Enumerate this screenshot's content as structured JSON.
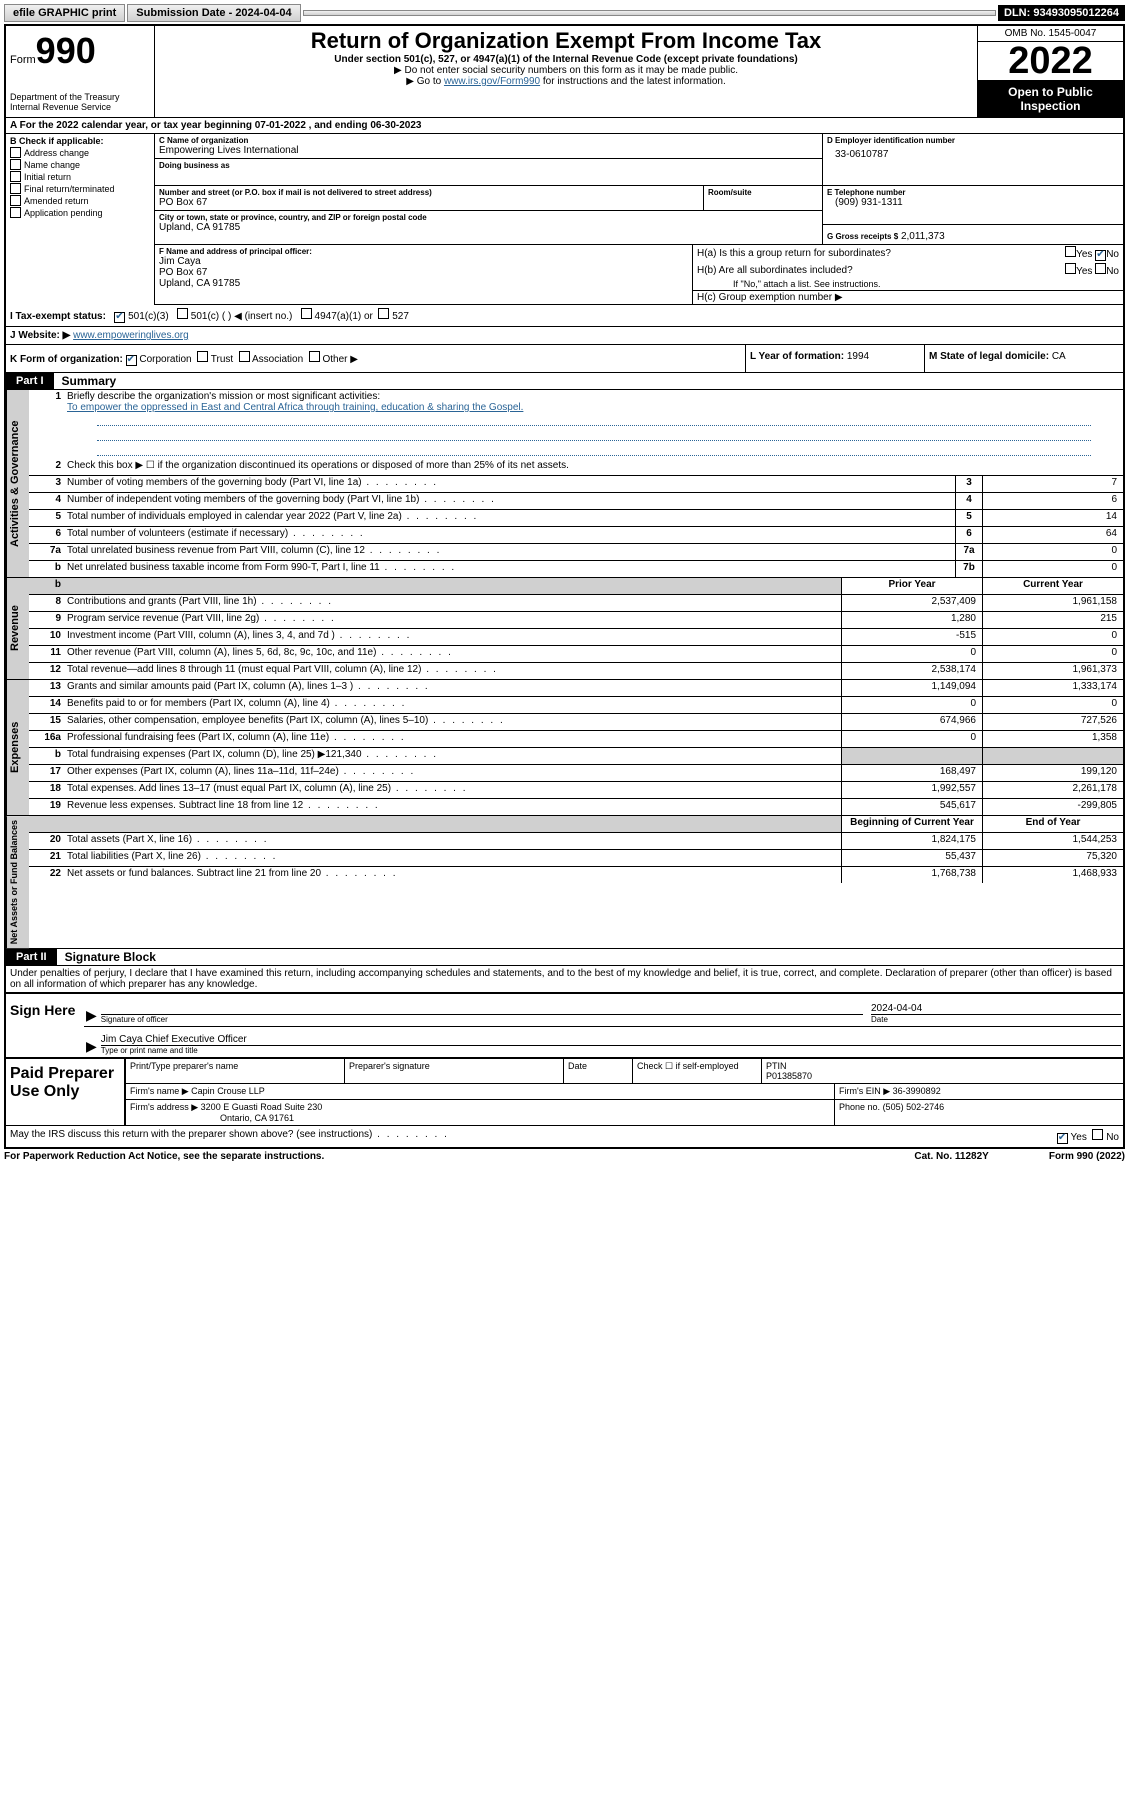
{
  "topbar": {
    "efile": "efile GRAPHIC print",
    "submission": "Submission Date - 2024-04-04",
    "dln": "DLN: 93493095012264"
  },
  "header": {
    "form_prefix": "Form",
    "form_number": "990",
    "title": "Return of Organization Exempt From Income Tax",
    "subtitle": "Under section 501(c), 527, or 4947(a)(1) of the Internal Revenue Code (except private foundations)",
    "note1": "▶ Do not enter social security numbers on this form as it may be made public.",
    "note2_pre": "▶ Go to ",
    "note2_link": "www.irs.gov/Form990",
    "note2_post": " for instructions and the latest information.",
    "dept": "Department of the Treasury",
    "irs": "Internal Revenue Service",
    "omb": "OMB No. 1545-0047",
    "year": "2022",
    "open": "Open to Public Inspection"
  },
  "sectionA": "A For the 2022 calendar year, or tax year beginning 07-01-2022   , and ending 06-30-2023",
  "B": {
    "label": "B Check if applicable:",
    "opts": [
      "Address change",
      "Name change",
      "Initial return",
      "Final return/terminated",
      "Amended return",
      "Application pending"
    ]
  },
  "C": {
    "name_label": "C Name of organization",
    "name": "Empowering Lives International",
    "dba_label": "Doing business as",
    "street_label": "Number and street (or P.O. box if mail is not delivered to street address)",
    "room_label": "Room/suite",
    "street": "PO Box 67",
    "city_label": "City or town, state or province, country, and ZIP or foreign postal code",
    "city": "Upland, CA  91785"
  },
  "D": {
    "label": "D Employer identification number",
    "val": "33-0610787"
  },
  "E": {
    "label": "E Telephone number",
    "val": "(909) 931-1311"
  },
  "G": {
    "label": "G Gross receipts $",
    "val": "2,011,373"
  },
  "F": {
    "label": "F Name and address of principal officer:",
    "name": "Jim Caya",
    "addr1": "PO Box 67",
    "addr2": "Upland, CA  91785"
  },
  "H": {
    "ha": "H(a)  Is this a group return for subordinates?",
    "hb": "H(b)  Are all subordinates included?",
    "hb_note": "If \"No,\" attach a list. See instructions.",
    "hc": "H(c)  Group exemption number ▶"
  },
  "I": {
    "label": "I   Tax-exempt status:",
    "opt1": "501(c)(3)",
    "opt2": "501(c) (  ) ◀ (insert no.)",
    "opt3": "4947(a)(1) or",
    "opt4": "527"
  },
  "J": {
    "label": "J   Website: ▶",
    "val": "www.empoweringlives.org"
  },
  "K": {
    "label": "K Form of organization:",
    "corp": "Corporation",
    "trust": "Trust",
    "assoc": "Association",
    "other": "Other ▶"
  },
  "L": {
    "label": "L Year of formation:",
    "val": "1994"
  },
  "M": {
    "label": "M State of legal domicile:",
    "val": "CA"
  },
  "part1": {
    "header": "Part I",
    "title": "Summary"
  },
  "summary": {
    "tabs": {
      "ag": "Activities & Governance",
      "rev": "Revenue",
      "exp": "Expenses",
      "net": "Net Assets or Fund Balances"
    },
    "l1_label": "Briefly describe the organization's mission or most significant activities:",
    "l1_text": "To empower the oppressed in East and Central Africa through training, education & sharing the Gospel.",
    "l2": "Check this box ▶ ☐  if the organization discontinued its operations or disposed of more than 25% of its net assets.",
    "lines_ag": [
      {
        "n": "3",
        "t": "Number of voting members of the governing body (Part VI, line 1a)",
        "box": "3",
        "v": "7"
      },
      {
        "n": "4",
        "t": "Number of independent voting members of the governing body (Part VI, line 1b)",
        "box": "4",
        "v": "6"
      },
      {
        "n": "5",
        "t": "Total number of individuals employed in calendar year 2022 (Part V, line 2a)",
        "box": "5",
        "v": "14"
      },
      {
        "n": "6",
        "t": "Total number of volunteers (estimate if necessary)",
        "box": "6",
        "v": "64"
      },
      {
        "n": "7a",
        "t": "Total unrelated business revenue from Part VIII, column (C), line 12",
        "box": "7a",
        "v": "0"
      },
      {
        "n": "b",
        "t": "Net unrelated business taxable income from Form 990-T, Part I, line 11",
        "box": "7b",
        "v": "0"
      }
    ],
    "col_headers": {
      "prior": "Prior Year",
      "current": "Current Year",
      "boy": "Beginning of Current Year",
      "eoy": "End of Year"
    },
    "lines_rev": [
      {
        "n": "8",
        "t": "Contributions and grants (Part VIII, line 1h)",
        "p": "2,537,409",
        "c": "1,961,158"
      },
      {
        "n": "9",
        "t": "Program service revenue (Part VIII, line 2g)",
        "p": "1,280",
        "c": "215"
      },
      {
        "n": "10",
        "t": "Investment income (Part VIII, column (A), lines 3, 4, and 7d )",
        "p": "-515",
        "c": "0"
      },
      {
        "n": "11",
        "t": "Other revenue (Part VIII, column (A), lines 5, 6d, 8c, 9c, 10c, and 11e)",
        "p": "0",
        "c": "0"
      },
      {
        "n": "12",
        "t": "Total revenue—add lines 8 through 11 (must equal Part VIII, column (A), line 12)",
        "p": "2,538,174",
        "c": "1,961,373"
      }
    ],
    "lines_exp": [
      {
        "n": "13",
        "t": "Grants and similar amounts paid (Part IX, column (A), lines 1–3 )",
        "p": "1,149,094",
        "c": "1,333,174"
      },
      {
        "n": "14",
        "t": "Benefits paid to or for members (Part IX, column (A), line 4)",
        "p": "0",
        "c": "0"
      },
      {
        "n": "15",
        "t": "Salaries, other compensation, employee benefits (Part IX, column (A), lines 5–10)",
        "p": "674,966",
        "c": "727,526"
      },
      {
        "n": "16a",
        "t": "Professional fundraising fees (Part IX, column (A), line 11e)",
        "p": "0",
        "c": "1,358"
      },
      {
        "n": "b",
        "t": "Total fundraising expenses (Part IX, column (D), line 25) ▶121,340",
        "p": "",
        "c": "",
        "gray": true
      },
      {
        "n": "17",
        "t": "Other expenses (Part IX, column (A), lines 11a–11d, 11f–24e)",
        "p": "168,497",
        "c": "199,120"
      },
      {
        "n": "18",
        "t": "Total expenses. Add lines 13–17 (must equal Part IX, column (A), line 25)",
        "p": "1,992,557",
        "c": "2,261,178"
      },
      {
        "n": "19",
        "t": "Revenue less expenses. Subtract line 18 from line 12",
        "p": "545,617",
        "c": "-299,805"
      }
    ],
    "lines_net": [
      {
        "n": "20",
        "t": "Total assets (Part X, line 16)",
        "p": "1,824,175",
        "c": "1,544,253"
      },
      {
        "n": "21",
        "t": "Total liabilities (Part X, line 26)",
        "p": "55,437",
        "c": "75,320"
      },
      {
        "n": "22",
        "t": "Net assets or fund balances. Subtract line 21 from line 20",
        "p": "1,768,738",
        "c": "1,468,933"
      }
    ]
  },
  "part2": {
    "header": "Part II",
    "title": "Signature Block",
    "decl": "Under penalties of perjury, I declare that I have examined this return, including accompanying schedules and statements, and to the best of my knowledge and belief, it is true, correct, and complete. Declaration of preparer (other than officer) is based on all information of which preparer has any knowledge."
  },
  "sign": {
    "here": "Sign Here",
    "sig_label": "Signature of officer",
    "date_label": "Date",
    "date_val": "2024-04-04",
    "name": "Jim Caya  Chief Executive Officer",
    "name_label": "Type or print name and title"
  },
  "paid": {
    "title": "Paid Preparer Use Only",
    "h1": "Print/Type preparer's name",
    "h2": "Preparer's signature",
    "h3": "Date",
    "h4_pre": "Check ☐ if self-employed",
    "h5": "PTIN",
    "ptin": "P01385870",
    "firm_name_l": "Firm's name    ▶",
    "firm_name": "Capin Crouse LLP",
    "firm_ein_l": "Firm's EIN ▶",
    "firm_ein": "36-3990892",
    "firm_addr_l": "Firm's address ▶",
    "firm_addr1": "3200 E Guasti Road Suite 230",
    "firm_addr2": "Ontario, CA  91761",
    "phone_l": "Phone no.",
    "phone": "(505) 502-2746"
  },
  "bottom": {
    "q": "May the IRS discuss this return with the preparer shown above? (see instructions)",
    "yes": "Yes",
    "no": "No",
    "paperwork": "For Paperwork Reduction Act Notice, see the separate instructions.",
    "cat": "Cat. No. 11282Y",
    "form": "Form 990 (2022)"
  }
}
